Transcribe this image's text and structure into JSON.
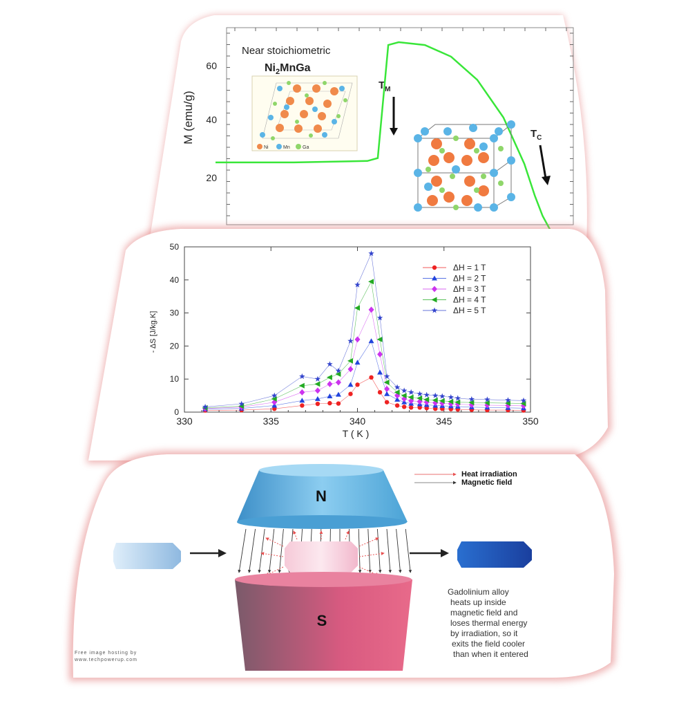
{
  "colors": {
    "panel_border": "#e07a7a",
    "mt_curve": "#39e639",
    "series_1": "#ee2222",
    "series_2": "#2244dd",
    "series_3": "#cc33ee",
    "series_4": "#22aa22",
    "series_5": "#3344cc",
    "magnet_n": "#5bb4e0",
    "magnet_s": "#e0557a"
  },
  "panel1": {
    "label_top": "Near stoichiometric",
    "compound_main": "Ni",
    "compound_sub": "2",
    "compound_rest": "MnGa",
    "crystal_legend": [
      "Ni",
      "Mn",
      "Ga"
    ],
    "tm_main": "T",
    "tm_sub": "M",
    "tc_main": "T",
    "tc_sub": "C",
    "ylabel": "M (emu/g)",
    "yticks": [
      "60",
      "40",
      "20"
    ]
  },
  "panel3": {
    "label_n": "N",
    "label_s": "S",
    "legend": [
      "Heat irradiation",
      "Magnetic field"
    ],
    "caption": [
      "Gadolinium alloy",
      "heats up inside",
      "magnetic field and",
      "loses thermal energy",
      "by irradiation, so it",
      "exits the field cooler",
      "than when it entered"
    ],
    "watermark": [
      "Free image hosting by",
      "www.techpowerup.com"
    ]
  },
  "chart_data": [
    {
      "type": "line",
      "xlabel": "",
      "ylabel": "M (emu/g)",
      "ylim": [
        5,
        73
      ],
      "x": [
        0,
        30,
        58,
        62,
        66,
        70,
        80,
        90,
        100,
        110,
        118,
        122,
        125,
        128
      ],
      "series": [
        {
          "values": [
            26.5,
            26.5,
            27,
            28,
            67,
            68,
            67,
            63,
            55,
            42,
            26,
            15,
            8,
            3
          ]
        }
      ],
      "annotations": [
        "Near stoichiometric",
        "Ni2MnGa",
        "TM",
        "TC"
      ]
    },
    {
      "type": "scatter",
      "title": "",
      "xlabel": "T ( K )",
      "ylabel": "- ΔS [J/kg.K]",
      "xlim": [
        330,
        350
      ],
      "ylim": [
        0,
        50
      ],
      "xticks": [
        "330",
        "335",
        "340",
        "345",
        "350"
      ],
      "yticks": [
        "0",
        "10",
        "20",
        "30",
        "40",
        "50"
      ],
      "grid": false,
      "legend_position": "top-right",
      "x": [
        331.2,
        333.3,
        335.2,
        336.8,
        337.7,
        338.4,
        338.9,
        339.6,
        340.0,
        340.8,
        341.3,
        341.7,
        342.3,
        342.7,
        343.1,
        343.6,
        344.0,
        344.5,
        344.9,
        345.4,
        345.8,
        346.6,
        347.5,
        348.7,
        349.6
      ],
      "series": [
        {
          "name": "ΔH = 1 T",
          "marker": "circle",
          "values": [
            0.5,
            0.6,
            1.0,
            2.0,
            2.5,
            2.7,
            2.6,
            5.5,
            8.3,
            10.5,
            6.0,
            3.0,
            2.0,
            1.6,
            1.4,
            1.4,
            1.2,
            1.0,
            1.0,
            0.9,
            0.8,
            0.7,
            0.6,
            0.6,
            0.5
          ]
        },
        {
          "name": "ΔH = 2 T",
          "marker": "triangle-up",
          "values": [
            0.9,
            1.1,
            2.0,
            3.5,
            4.0,
            4.8,
            5.3,
            8.3,
            15.0,
            21.5,
            12.0,
            5.5,
            3.8,
            3.0,
            2.6,
            2.4,
            2.2,
            2.0,
            1.9,
            1.8,
            1.7,
            1.5,
            1.4,
            1.3,
            1.2
          ]
        },
        {
          "name": "ΔH = 3 T",
          "marker": "diamond",
          "values": [
            1.1,
            1.5,
            3.0,
            6.0,
            6.5,
            8.5,
            9.0,
            13.0,
            22.0,
            31.0,
            17.5,
            7.0,
            5.0,
            4.0,
            3.4,
            3.2,
            3.0,
            2.8,
            2.7,
            2.5,
            2.4,
            2.2,
            2.1,
            2.0,
            1.9
          ]
        },
        {
          "name": "ΔH = 4 T",
          "marker": "triangle-left",
          "values": [
            1.3,
            1.8,
            4.0,
            8.0,
            8.5,
            10.5,
            11.5,
            15.5,
            31.5,
            39.5,
            22.0,
            9.0,
            6.0,
            5.0,
            4.5,
            4.2,
            3.8,
            3.6,
            3.4,
            3.2,
            3.0,
            2.9,
            2.8,
            2.7,
            2.6
          ]
        },
        {
          "name": "ΔH = 5 T",
          "marker": "star",
          "values": [
            1.6,
            2.5,
            5.0,
            10.8,
            10.0,
            14.5,
            12.5,
            21.5,
            38.5,
            48.0,
            28.5,
            10.8,
            7.5,
            6.5,
            6.0,
            5.5,
            5.2,
            5.0,
            4.8,
            4.5,
            4.2,
            3.9,
            3.8,
            3.6,
            3.5
          ]
        }
      ]
    }
  ]
}
